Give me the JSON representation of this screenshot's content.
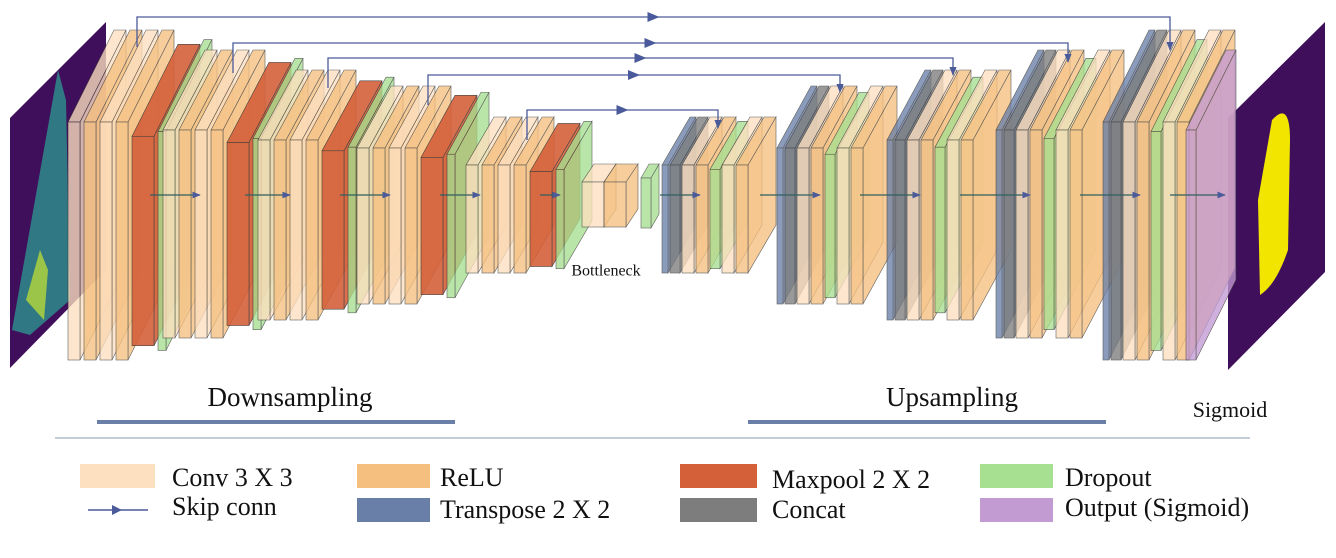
{
  "diagram": {
    "bottleneck_label": "Bottleneck",
    "sections": [
      "Downsampling",
      "Upsampling"
    ],
    "output_label": "Sigmoid"
  },
  "legend": [
    {
      "label": "Conv 3 X 3"
    },
    {
      "label": "Skip conn"
    },
    {
      "label": "ReLU"
    },
    {
      "label": "Transpose 2 X 2"
    },
    {
      "label": "Maxpool 2 X 2"
    },
    {
      "label": "Concat"
    },
    {
      "label": "Dropout"
    },
    {
      "label": "Output (Sigmoid)"
    }
  ]
}
